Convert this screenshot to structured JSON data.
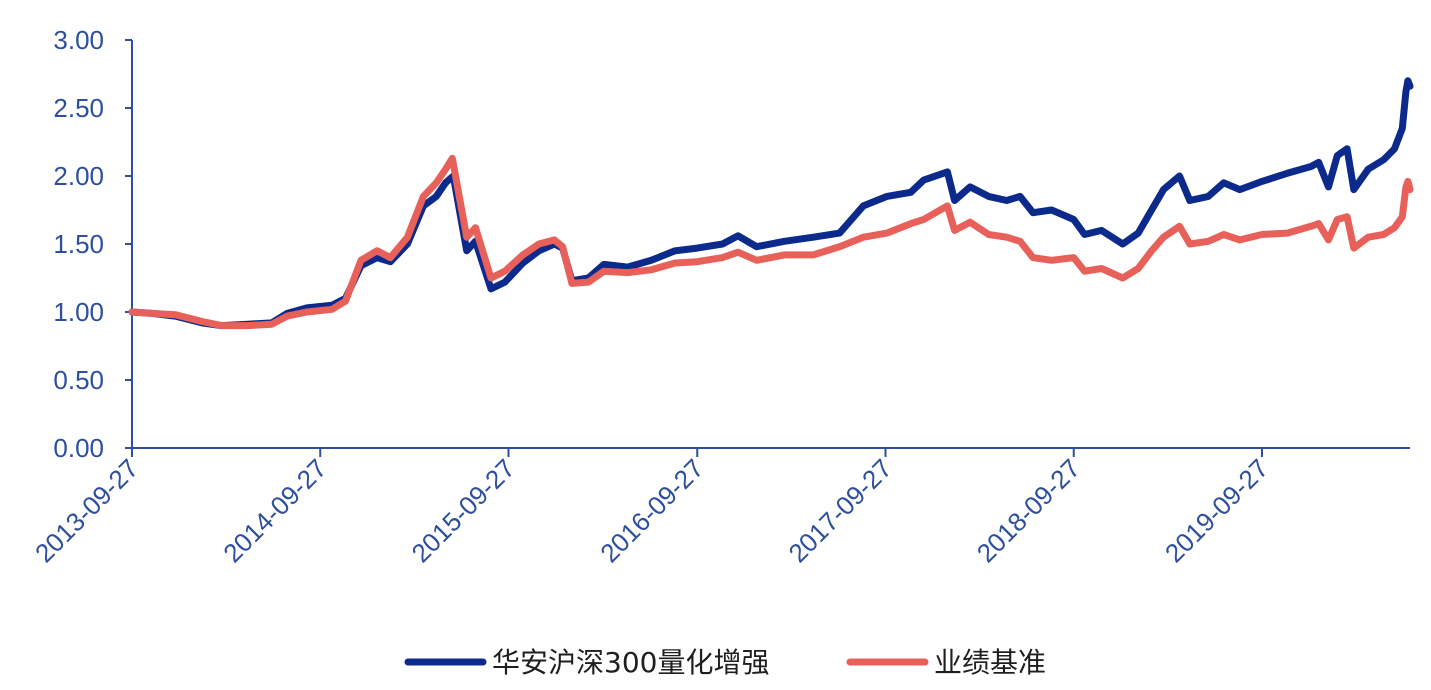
{
  "chart_data": {
    "type": "line",
    "title": "",
    "xlabel": "",
    "ylabel": "",
    "x_start": "2013-09-27",
    "x_end": "2020-07-10",
    "ylim": [
      0,
      3
    ],
    "yticks": [
      "0.00",
      "0.50",
      "1.00",
      "1.50",
      "2.00",
      "2.50",
      "3.00"
    ],
    "xticks": [
      "2013-09-27",
      "2014-09-27",
      "2015-09-27",
      "2016-09-27",
      "2017-09-27",
      "2018-09-27",
      "2019-09-27"
    ],
    "grid": false,
    "legend_position": "bottom",
    "series": [
      {
        "name": "华安沪深300量化增强",
        "color": "#0b2a8c",
        "points": [
          [
            "2013-09-27",
            1.0
          ],
          [
            "2013-11-05",
            0.99
          ],
          [
            "2013-12-20",
            0.97
          ],
          [
            "2014-02-10",
            0.92
          ],
          [
            "2014-03-20",
            0.9
          ],
          [
            "2014-05-10",
            0.91
          ],
          [
            "2014-06-25",
            0.92
          ],
          [
            "2014-07-25",
            0.99
          ],
          [
            "2014-09-01",
            1.03
          ],
          [
            "2014-10-20",
            1.05
          ],
          [
            "2014-11-15",
            1.1
          ],
          [
            "2014-12-15",
            1.34
          ],
          [
            "2015-01-15",
            1.4
          ],
          [
            "2015-02-10",
            1.37
          ],
          [
            "2015-03-15",
            1.5
          ],
          [
            "2015-04-15",
            1.78
          ],
          [
            "2015-05-10",
            1.85
          ],
          [
            "2015-05-28",
            1.95
          ],
          [
            "2015-06-12",
            2.0
          ],
          [
            "2015-07-08",
            1.45
          ],
          [
            "2015-07-25",
            1.52
          ],
          [
            "2015-08-24",
            1.17
          ],
          [
            "2015-09-20",
            1.22
          ],
          [
            "2015-10-25",
            1.36
          ],
          [
            "2015-11-25",
            1.45
          ],
          [
            "2015-12-25",
            1.5
          ],
          [
            "2016-01-10",
            1.47
          ],
          [
            "2016-01-28",
            1.23
          ],
          [
            "2016-02-29",
            1.25
          ],
          [
            "2016-03-30",
            1.35
          ],
          [
            "2016-05-15",
            1.33
          ],
          [
            "2016-06-30",
            1.38
          ],
          [
            "2016-08-15",
            1.45
          ],
          [
            "2016-09-27",
            1.47
          ],
          [
            "2016-11-15",
            1.5
          ],
          [
            "2016-12-15",
            1.56
          ],
          [
            "2017-01-20",
            1.48
          ],
          [
            "2017-03-15",
            1.52
          ],
          [
            "2017-05-10",
            1.55
          ],
          [
            "2017-06-30",
            1.58
          ],
          [
            "2017-08-15",
            1.78
          ],
          [
            "2017-09-30",
            1.85
          ],
          [
            "2017-11-15",
            1.88
          ],
          [
            "2017-12-10",
            1.97
          ],
          [
            "2018-01-25",
            2.03
          ],
          [
            "2018-02-08",
            1.82
          ],
          [
            "2018-03-10",
            1.92
          ],
          [
            "2018-04-15",
            1.85
          ],
          [
            "2018-05-20",
            1.82
          ],
          [
            "2018-06-15",
            1.85
          ],
          [
            "2018-07-10",
            1.73
          ],
          [
            "2018-08-15",
            1.75
          ],
          [
            "2018-09-27",
            1.68
          ],
          [
            "2018-10-18",
            1.57
          ],
          [
            "2018-11-20",
            1.6
          ],
          [
            "2018-12-31",
            1.5
          ],
          [
            "2019-01-30",
            1.58
          ],
          [
            "2019-02-25",
            1.75
          ],
          [
            "2019-03-20",
            1.9
          ],
          [
            "2019-04-20",
            2.0
          ],
          [
            "2019-05-10",
            1.82
          ],
          [
            "2019-06-15",
            1.85
          ],
          [
            "2019-07-15",
            1.95
          ],
          [
            "2019-08-15",
            1.9
          ],
          [
            "2019-09-27",
            1.96
          ],
          [
            "2019-11-15",
            2.02
          ],
          [
            "2019-12-31",
            2.07
          ],
          [
            "2020-01-15",
            2.1
          ],
          [
            "2020-02-03",
            1.92
          ],
          [
            "2020-02-20",
            2.15
          ],
          [
            "2020-03-10",
            2.2
          ],
          [
            "2020-03-23",
            1.9
          ],
          [
            "2020-04-20",
            2.05
          ],
          [
            "2020-05-20",
            2.12
          ],
          [
            "2020-06-10",
            2.2
          ],
          [
            "2020-06-25",
            2.35
          ],
          [
            "2020-07-02",
            2.62
          ],
          [
            "2020-07-06",
            2.7
          ],
          [
            "2020-07-10",
            2.66
          ]
        ]
      },
      {
        "name": "业绩基准",
        "color": "#e8605a",
        "points": [
          [
            "2013-09-27",
            1.0
          ],
          [
            "2013-11-05",
            0.99
          ],
          [
            "2013-12-20",
            0.98
          ],
          [
            "2014-02-10",
            0.93
          ],
          [
            "2014-03-20",
            0.9
          ],
          [
            "2014-05-10",
            0.9
          ],
          [
            "2014-06-25",
            0.91
          ],
          [
            "2014-07-25",
            0.97
          ],
          [
            "2014-09-01",
            1.0
          ],
          [
            "2014-10-20",
            1.02
          ],
          [
            "2014-11-15",
            1.08
          ],
          [
            "2014-12-15",
            1.38
          ],
          [
            "2015-01-15",
            1.45
          ],
          [
            "2015-02-10",
            1.4
          ],
          [
            "2015-03-15",
            1.55
          ],
          [
            "2015-04-15",
            1.85
          ],
          [
            "2015-05-10",
            1.95
          ],
          [
            "2015-05-28",
            2.05
          ],
          [
            "2015-06-10",
            2.13
          ],
          [
            "2015-07-08",
            1.55
          ],
          [
            "2015-07-25",
            1.62
          ],
          [
            "2015-08-24",
            1.25
          ],
          [
            "2015-09-20",
            1.3
          ],
          [
            "2015-10-25",
            1.42
          ],
          [
            "2015-11-25",
            1.5
          ],
          [
            "2015-12-25",
            1.53
          ],
          [
            "2016-01-10",
            1.48
          ],
          [
            "2016-01-28",
            1.21
          ],
          [
            "2016-02-29",
            1.22
          ],
          [
            "2016-03-30",
            1.3
          ],
          [
            "2016-05-15",
            1.29
          ],
          [
            "2016-06-30",
            1.31
          ],
          [
            "2016-08-15",
            1.36
          ],
          [
            "2016-09-27",
            1.37
          ],
          [
            "2016-11-15",
            1.4
          ],
          [
            "2016-12-15",
            1.44
          ],
          [
            "2017-01-20",
            1.38
          ],
          [
            "2017-03-15",
            1.42
          ],
          [
            "2017-05-10",
            1.42
          ],
          [
            "2017-06-30",
            1.48
          ],
          [
            "2017-08-15",
            1.55
          ],
          [
            "2017-09-30",
            1.58
          ],
          [
            "2017-11-15",
            1.65
          ],
          [
            "2017-12-10",
            1.68
          ],
          [
            "2018-01-25",
            1.78
          ],
          [
            "2018-02-08",
            1.6
          ],
          [
            "2018-03-10",
            1.66
          ],
          [
            "2018-04-15",
            1.57
          ],
          [
            "2018-05-20",
            1.55
          ],
          [
            "2018-06-15",
            1.52
          ],
          [
            "2018-07-10",
            1.4
          ],
          [
            "2018-08-15",
            1.38
          ],
          [
            "2018-09-27",
            1.4
          ],
          [
            "2018-10-18",
            1.3
          ],
          [
            "2018-11-20",
            1.32
          ],
          [
            "2018-12-31",
            1.25
          ],
          [
            "2019-01-30",
            1.32
          ],
          [
            "2019-02-25",
            1.45
          ],
          [
            "2019-03-20",
            1.55
          ],
          [
            "2019-04-20",
            1.63
          ],
          [
            "2019-05-10",
            1.5
          ],
          [
            "2019-06-15",
            1.52
          ],
          [
            "2019-07-15",
            1.57
          ],
          [
            "2019-08-15",
            1.53
          ],
          [
            "2019-09-27",
            1.57
          ],
          [
            "2019-11-15",
            1.58
          ],
          [
            "2019-12-31",
            1.63
          ],
          [
            "2020-01-15",
            1.65
          ],
          [
            "2020-02-03",
            1.53
          ],
          [
            "2020-02-20",
            1.68
          ],
          [
            "2020-03-10",
            1.7
          ],
          [
            "2020-03-23",
            1.47
          ],
          [
            "2020-04-20",
            1.55
          ],
          [
            "2020-05-20",
            1.57
          ],
          [
            "2020-06-10",
            1.62
          ],
          [
            "2020-06-25",
            1.7
          ],
          [
            "2020-07-02",
            1.92
          ],
          [
            "2020-07-06",
            1.96
          ],
          [
            "2020-07-10",
            1.9
          ]
        ]
      }
    ]
  }
}
